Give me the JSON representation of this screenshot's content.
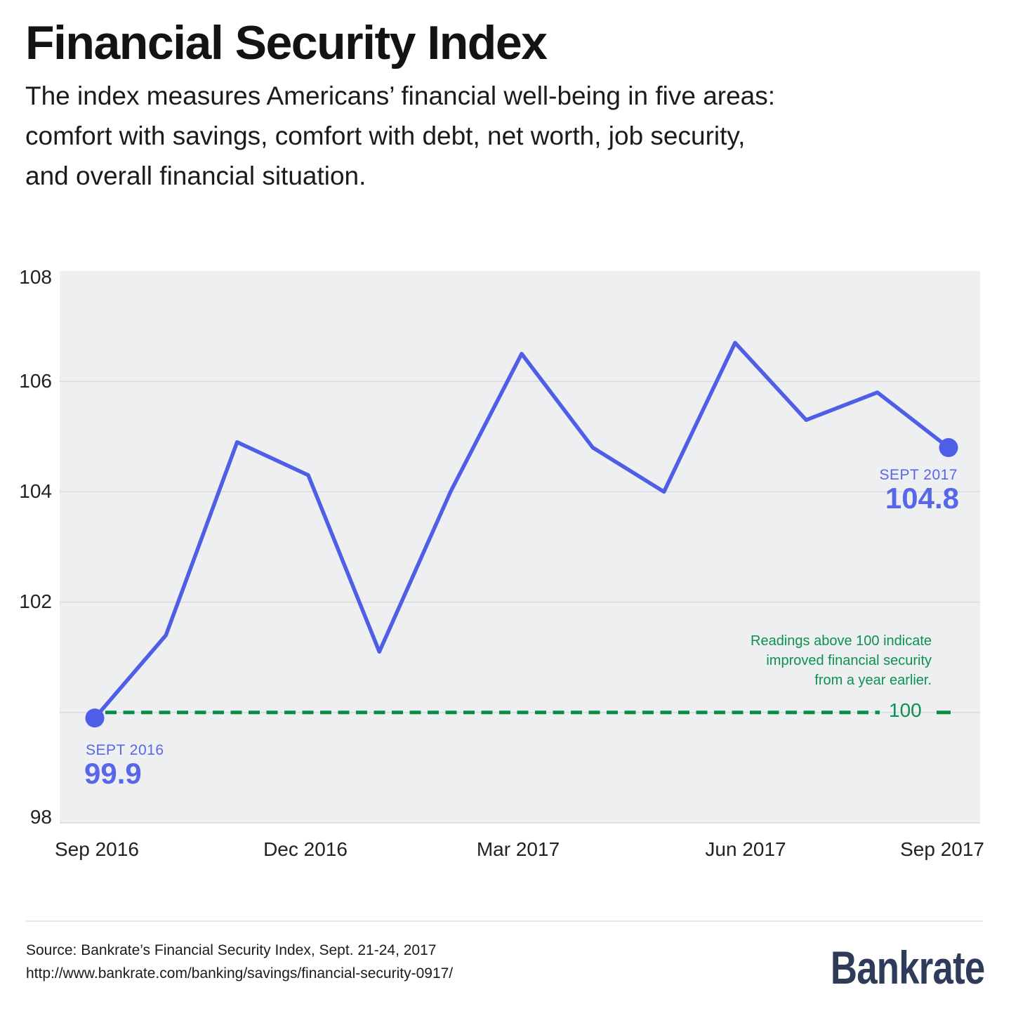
{
  "header": {
    "title": "Financial Security Index",
    "subtitle": "The index measures Americans’ financial well-being in five areas:\ncomfort with savings, comfort with debt, net worth, job security,\nand overall financial situation."
  },
  "chart_data": {
    "type": "line",
    "title": "Financial Security Index",
    "x": [
      "Sep 2016",
      "Oct 2016",
      "Nov 2016",
      "Dec 2016",
      "Jan 2017",
      "Feb 2017",
      "Mar 2017",
      "Apr 2017",
      "May 2017",
      "Jun 2017",
      "Jul 2017",
      "Aug 2017",
      "Sep 2017"
    ],
    "values": [
      99.9,
      101.4,
      104.9,
      104.3,
      101.1,
      104.0,
      106.5,
      104.8,
      104.0,
      106.7,
      105.3,
      105.8,
      104.8
    ],
    "ylim": [
      98,
      108
    ],
    "ytick_labels": [
      "108",
      "106",
      "104",
      "102",
      "98"
    ],
    "xtick_labels": [
      "Sep 2016",
      "Dec 2016",
      "Mar 2017",
      "Jun 2017",
      "Sep 2017"
    ],
    "gridlines": [
      106,
      104,
      102,
      100,
      98
    ],
    "grid": "on",
    "baseline": {
      "value": 100,
      "label": "100"
    },
    "annotations": {
      "start": {
        "label": "SEPT 2016",
        "value": "99.9"
      },
      "end": {
        "label": "SEPT 2017",
        "value": "104.8"
      },
      "baseline_note": "Readings above 100 indicate\nimproved financial security\nfrom a year earlier."
    },
    "colors": {
      "line": "#4f5ee6",
      "label_blue": "#5866e9",
      "green": "#088c46",
      "green_text": "#0d9150",
      "grid_line": "#d8dadd",
      "plot_bg": "#eeeff1"
    }
  },
  "footer": {
    "source_line1": "Source: Bankrate’s Financial Security Index, Sept. 21-24, 2017",
    "source_line2": "http://www.bankrate.com/banking/savings/financial-security-0917/",
    "logo": "Bankrate"
  }
}
